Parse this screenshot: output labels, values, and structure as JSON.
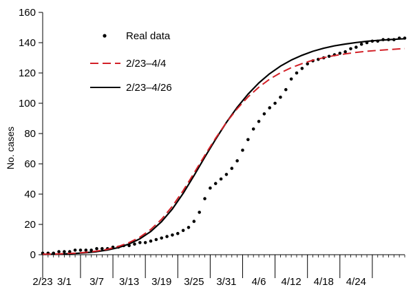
{
  "chart_data": {
    "type": "line",
    "title": "",
    "xlabel": "",
    "ylabel": "No. cases",
    "ylim": [
      0,
      160
    ],
    "y_ticks": [
      0,
      20,
      40,
      60,
      80,
      100,
      120,
      140,
      160
    ],
    "x_start": "2/23",
    "x_range_days": [
      0,
      67
    ],
    "x_ticks": [
      {
        "day": 0,
        "label": "2/23"
      },
      {
        "day": 7,
        "label": "3/1"
      },
      {
        "day": 13,
        "label": "3/7"
      },
      {
        "day": 19,
        "label": "3/13"
      },
      {
        "day": 25,
        "label": "3/19"
      },
      {
        "day": 31,
        "label": "3/25"
      },
      {
        "day": 37,
        "label": "3/31"
      },
      {
        "day": 43,
        "label": "4/6"
      },
      {
        "day": 49,
        "label": "4/12"
      },
      {
        "day": 55,
        "label": "4/18"
      },
      {
        "day": 61,
        "label": "4/24"
      }
    ],
    "grid": false,
    "legend_position": "top-left",
    "series": [
      {
        "name": "Real data",
        "style": "points",
        "color": "#000000",
        "x": [
          0,
          1,
          2,
          3,
          4,
          5,
          6,
          7,
          8,
          9,
          10,
          11,
          12,
          13,
          14,
          15,
          16,
          17,
          18,
          19,
          20,
          21,
          22,
          23,
          24,
          25,
          26,
          27,
          28,
          29,
          30,
          31,
          32,
          33,
          34,
          35,
          36,
          37,
          38,
          39,
          40,
          41,
          42,
          43,
          44,
          45,
          46,
          47,
          48,
          49,
          50,
          51,
          52,
          53,
          54,
          55,
          56,
          57,
          58,
          59,
          60,
          61,
          62,
          63,
          64,
          65,
          66,
          67
        ],
        "y": [
          1,
          1,
          1,
          2,
          2,
          2,
          3,
          3,
          3,
          3,
          4,
          4,
          4,
          5,
          5,
          6,
          6,
          7,
          8,
          8,
          9,
          10,
          11,
          12,
          13,
          14,
          16,
          18,
          22,
          28,
          37,
          44,
          47,
          50,
          53,
          57,
          62,
          69,
          76,
          83,
          88,
          93,
          97,
          100,
          104,
          109,
          116,
          120,
          123,
          126,
          128,
          129,
          130,
          131,
          132,
          133,
          134,
          136,
          137,
          139,
          140,
          141,
          141,
          142,
          142,
          142,
          143,
          143
        ]
      },
      {
        "name": "2/23–4/4",
        "style": "dashed",
        "color": "#d21f26",
        "x": [
          0,
          2,
          4,
          6,
          8,
          10,
          12,
          14,
          16,
          18,
          20,
          22,
          24,
          26,
          28,
          30,
          32,
          34,
          36,
          38,
          40,
          42,
          44,
          46,
          48,
          50,
          52,
          54,
          56,
          58,
          60,
          62,
          64,
          66,
          67
        ],
        "y": [
          0.3,
          0.4,
          0.7,
          1.0,
          1.6,
          2.4,
          3.6,
          5.4,
          8.0,
          11.6,
          16.7,
          23.4,
          32.0,
          42.3,
          53.8,
          65.6,
          76.9,
          87.3,
          96.4,
          104.2,
          110.6,
          115.9,
          120.1,
          123.5,
          126.2,
          128.4,
          130.1,
          131.5,
          132.6,
          133.6,
          134.3,
          134.9,
          135.4,
          135.9,
          136.1
        ]
      },
      {
        "name": "2/23–4/26",
        "style": "solid",
        "color": "#000000",
        "x": [
          0,
          2,
          4,
          6,
          8,
          10,
          12,
          14,
          16,
          18,
          20,
          22,
          24,
          26,
          28,
          30,
          32,
          34,
          36,
          38,
          40,
          42,
          44,
          46,
          48,
          50,
          52,
          54,
          56,
          58,
          60,
          62,
          64,
          66,
          67
        ],
        "y": [
          0.2,
          0.3,
          0.5,
          0.8,
          1.3,
          2.0,
          3.1,
          4.7,
          7.1,
          10.5,
          15.3,
          21.8,
          30.2,
          40.5,
          52.2,
          64.4,
          76.2,
          87.3,
          97.3,
          106.0,
          113.4,
          119.5,
          124.5,
          128.5,
          131.7,
          134.3,
          136.3,
          137.9,
          139.1,
          140.1,
          140.9,
          141.5,
          142.0,
          142.4,
          142.6
        ]
      }
    ]
  }
}
